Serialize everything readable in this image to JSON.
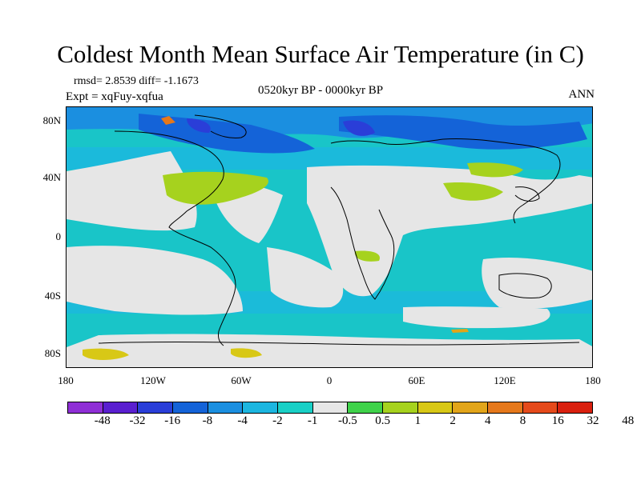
{
  "title": "Coldest Month Mean Surface Air Temperature (in C)",
  "stats": "rmsd= 2.8539  diff= -1.1673",
  "experiment": "Expt = xqFuy-xqfua",
  "period": "0520kyr BP - 0000kyr BP",
  "season": "ANN",
  "lat_labels": [
    "80N",
    "40N",
    "0",
    "40S",
    "80S"
  ],
  "lon_labels": [
    "180",
    "120W",
    "60W",
    "0",
    "60E",
    "120E",
    "180"
  ],
  "colorbar": {
    "colors": [
      "#8f2fd6",
      "#5a1fd0",
      "#2a3ed8",
      "#1463d8",
      "#1b8fe0",
      "#1cb6e0",
      "#19d0c6",
      "#e6e6e6",
      "#3fd24a",
      "#a6d21e",
      "#d8c816",
      "#e2a51a",
      "#e5781b",
      "#e54a1b",
      "#d9200f"
    ],
    "labels": [
      "-48",
      "-32",
      "-16",
      "-8",
      "-4",
      "-2",
      "-1",
      "-0.5",
      "0.5",
      "1",
      "2",
      "4",
      "8",
      "16",
      "32",
      "48"
    ]
  },
  "colors": {
    "ocean_base": "#19c5c8",
    "near_zero": "#e6e6e6",
    "warm_green": "#a6d21e",
    "cold_blue": "#1463d8",
    "deep_cold": "#2a3ed8"
  }
}
